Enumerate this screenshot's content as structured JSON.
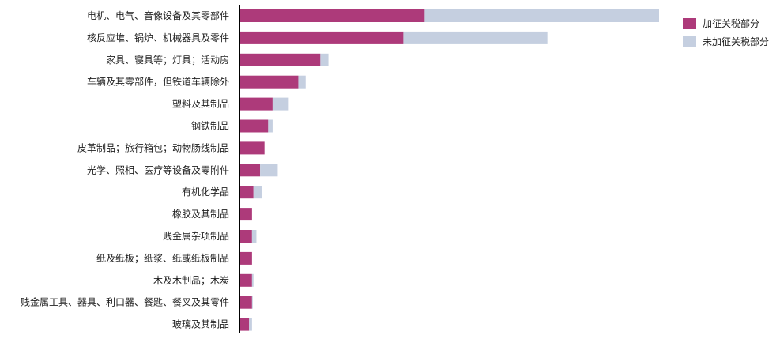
{
  "chart_data": {
    "type": "bar",
    "orientation": "horizontal",
    "stacked": true,
    "title": "",
    "xlabel": "",
    "ylabel": "",
    "grid": false,
    "legend_position": "top-right",
    "xlim": [
      0,
      570
    ],
    "categories": [
      "电机、电气、音像设备及其零部件",
      "核反应堆、锅炉、机械器具及零件",
      "家具、寝具等；灯具；活动房",
      "车辆及其零部件，但铁道车辆除外",
      "塑料及其制品",
      "钢铁制品",
      "皮革制品；旅行箱包；动物肠线制品",
      "光学、照相、医疗等设备及零附件",
      "有机化学品",
      "橡胶及其制品",
      "贱金属杂项制品",
      "纸及纸板；纸浆、纸或纸板制品",
      "木及木制品；木炭",
      "贱金属工具、器具、利口器、餐匙、餐叉及其零件",
      "玻璃及其制品"
    ],
    "series": [
      {
        "name": "加征关税部分",
        "color": "#AD3A7A",
        "values": [
          251,
          222,
          109,
          79,
          44,
          38,
          33,
          27,
          18,
          16,
          16,
          16,
          16,
          16,
          12
        ]
      },
      {
        "name": "未加征关税部分",
        "color": "#C5CFE0",
        "values": [
          319,
          196,
          11,
          10,
          22,
          6,
          0,
          24,
          11,
          0,
          6,
          0,
          2,
          1,
          4
        ]
      }
    ]
  }
}
